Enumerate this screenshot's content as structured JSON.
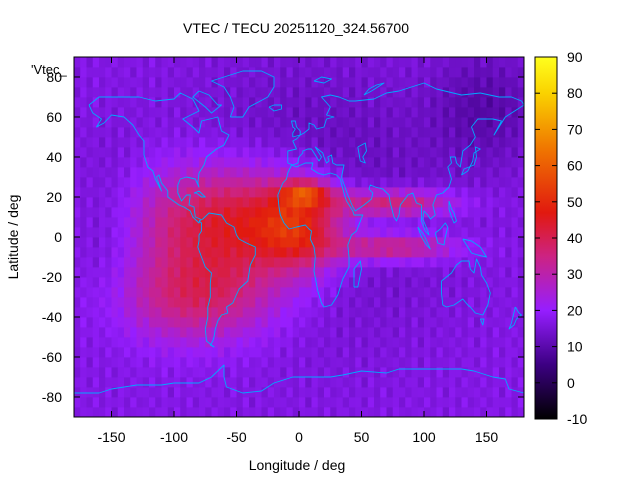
{
  "chart_data": {
    "type": "heatmap",
    "title": "VTEC / TECU 20251120_324.56700",
    "legend_label": "'Vtec_",
    "xlabel": "Longitude / deg",
    "ylabel": "Latitude / deg",
    "xlim": [
      -180,
      180
    ],
    "ylim": [
      -90,
      90
    ],
    "xticks": [
      -150,
      -100,
      -50,
      0,
      50,
      100,
      150
    ],
    "yticks": [
      -80,
      -60,
      -40,
      -20,
      0,
      20,
      40,
      60,
      80
    ],
    "colorbar": {
      "range": [
        -10,
        90
      ],
      "ticks": [
        -10,
        0,
        10,
        20,
        30,
        40,
        50,
        60,
        70,
        80,
        90
      ],
      "palette": "black-purple-red-orange-yellow"
    },
    "grid": {
      "lon_step": 5,
      "lat_step": 5
    },
    "field_model": {
      "background": 17,
      "components": [
        {
          "lon": -55,
          "lat": 8,
          "slon": 52,
          "slat": 20,
          "amp": 30
        },
        {
          "lon": 0,
          "lat": 5,
          "slon": 24,
          "slat": 15,
          "amp": 24
        },
        {
          "lon": -80,
          "lat": -30,
          "slon": 45,
          "slat": 16,
          "amp": 20
        },
        {
          "lon": 75,
          "lat": 17,
          "slon": 35,
          "slat": 5,
          "amp": 22
        },
        {
          "lon": 75,
          "lat": -5,
          "slon": 35,
          "slat": 5,
          "amp": 20
        },
        {
          "lon": 5,
          "lat": 22,
          "slon": 13,
          "slat": 4,
          "amp": 25
        },
        {
          "lon": 10,
          "lat": 20,
          "slon": 75,
          "slat": 45,
          "amp": -7
        },
        {
          "lon": 150,
          "lat": 65,
          "slon": 30,
          "slat": 20,
          "amp": -7
        },
        {
          "lon": -150,
          "lat": 0,
          "slon": 20,
          "slat": 30,
          "amp": -5
        }
      ]
    },
    "coastline_color": "#00a9ff"
  }
}
